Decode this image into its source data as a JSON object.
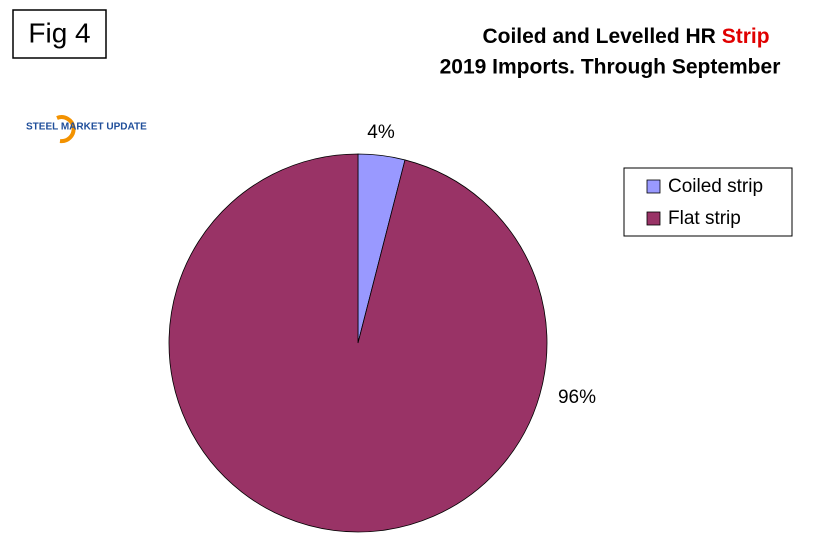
{
  "chart_data": {
    "type": "pie",
    "figure_label": "Fig 4",
    "title": "Coiled and Levelled HR",
    "title_highlight": "Strip",
    "subtitle": "2019 Imports. Through September",
    "logo": "STEEL MARKET UPDATE",
    "categories": [
      "Coiled strip",
      "Flat strip"
    ],
    "values": [
      4,
      96
    ],
    "value_labels": [
      "4%",
      "96%"
    ],
    "colors": [
      "#9999ff",
      "#993366"
    ],
    "legend": "right"
  }
}
